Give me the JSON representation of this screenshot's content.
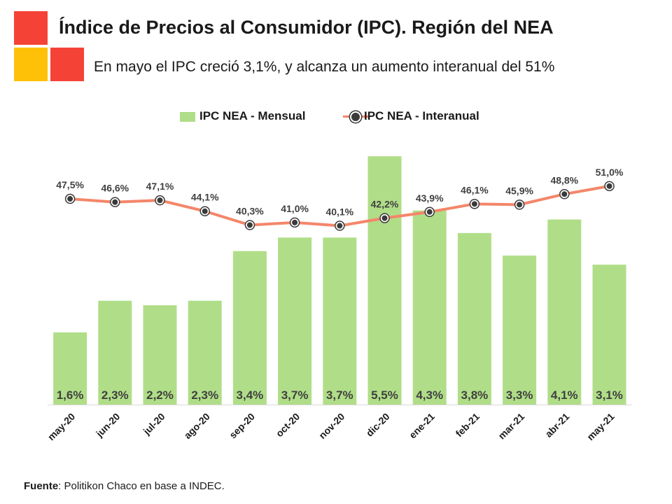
{
  "header": {
    "title": "Índice de Precios al Consumidor (IPC). Región del NEA",
    "subtitle": "En mayo el IPC creció 3,1%, y alcanza un aumento interanual del 51%",
    "logo_colors": [
      "#F44336",
      "#FFC107",
      "#F44336"
    ]
  },
  "legend": {
    "bar_label": "IPC NEA - Mensual",
    "line_label": "IPC NEA - Interanual"
  },
  "colors": {
    "bar": "#B0DE88",
    "line": "#F4866A",
    "marker": "#3A3A3A",
    "text": "#1A1A1A",
    "label": "#404040"
  },
  "chart_data": {
    "type": "bar",
    "title": "Índice de Precios al Consumidor (IPC). Región del NEA",
    "categories": [
      "may-20",
      "jun-20",
      "jul-20",
      "ago-20",
      "sep-20",
      "oct-20",
      "nov-20",
      "dic-20",
      "ene-21",
      "feb-21",
      "mar-21",
      "abr-21",
      "may-21"
    ],
    "series": [
      {
        "name": "IPC NEA - Mensual",
        "type": "bar",
        "values": [
          1.6,
          2.3,
          2.2,
          2.3,
          3.4,
          3.7,
          3.7,
          5.5,
          4.3,
          3.8,
          3.3,
          4.1,
          3.1
        ],
        "labels": [
          "1,6%",
          "2,3%",
          "2,2%",
          "2,3%",
          "3,4%",
          "3,7%",
          "3,7%",
          "5,5%",
          "4,3%",
          "3,8%",
          "3,3%",
          "4,1%",
          "3,1%"
        ]
      },
      {
        "name": "IPC NEA - Interanual",
        "type": "line",
        "values": [
          47.5,
          46.6,
          47.1,
          44.1,
          40.3,
          41.0,
          40.1,
          42.2,
          43.9,
          46.1,
          45.9,
          48.8,
          51.0
        ],
        "labels": [
          "47,5%",
          "46,6%",
          "47,1%",
          "44,1%",
          "40,3%",
          "41,0%",
          "40,1%",
          "42,2%",
          "43,9%",
          "46,1%",
          "45,9%",
          "48,8%",
          "51,0%"
        ]
      }
    ],
    "xlabel": "",
    "ylabel": "",
    "bar_ylim": [
      0,
      6
    ],
    "line_ylim": [
      0,
      60
    ],
    "legend_position": "top-center"
  },
  "source": {
    "label": "Fuente",
    "text": ": Politikon Chaco en base a INDEC."
  }
}
